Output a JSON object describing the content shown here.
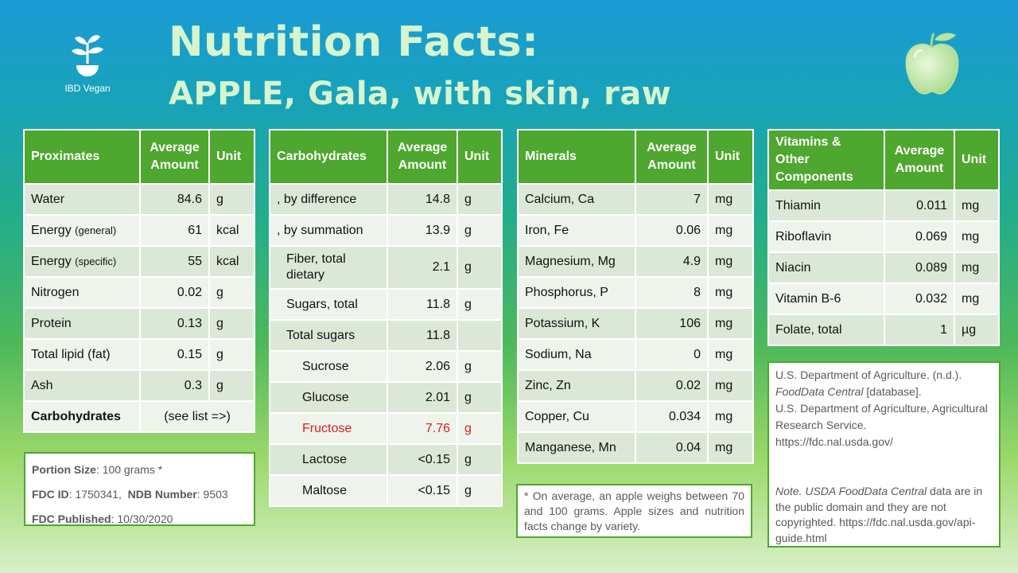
{
  "brand": {
    "name": "IBD Vegan"
  },
  "title": {
    "line1": "Nutrition Facts:",
    "line2": "APPLE, Gala, with skin, raw"
  },
  "proximates": {
    "headers": [
      "Proximates",
      "Average Amount",
      "Unit"
    ],
    "rows": [
      {
        "name": "Water",
        "value": "84.6",
        "unit": "g"
      },
      {
        "name": "Energy",
        "qualifier": "(general)",
        "value": "61",
        "unit": "kcal"
      },
      {
        "name": "Energy",
        "qualifier": "(specific)",
        "value": "55",
        "unit": "kcal"
      },
      {
        "name": "Nitrogen",
        "value": "0.02",
        "unit": "g"
      },
      {
        "name": "Protein",
        "value": "0.13",
        "unit": "g"
      },
      {
        "name": "Total lipid (fat)",
        "value": "0.15",
        "unit": "g"
      },
      {
        "name": "Ash",
        "value": "0.3",
        "unit": "g"
      },
      {
        "name": "Carbohydrates",
        "value": "(see list =>)"
      }
    ]
  },
  "carbohydrates": {
    "headers": [
      "Carbohydrates",
      "Average Amount",
      "Unit"
    ],
    "rows": [
      {
        "name": ", by difference",
        "value": "14.8",
        "unit": "g"
      },
      {
        "name": ", by summation",
        "value": "13.9",
        "unit": "g"
      },
      {
        "name": "Fiber, total dietary",
        "value": "2.1",
        "unit": "g"
      },
      {
        "name": "Sugars, total",
        "value": "11.8",
        "unit": "g"
      },
      {
        "name": "Total sugars",
        "value": "11.8",
        "unit": ""
      },
      {
        "name": "Sucrose",
        "value": "2.06",
        "unit": "g"
      },
      {
        "name": "Glucose",
        "value": "2.01",
        "unit": "g"
      },
      {
        "name": "Fructose",
        "value": "7.76",
        "unit": "g"
      },
      {
        "name": "Lactose",
        "value": "<0.15",
        "unit": "g"
      },
      {
        "name": "Maltose",
        "value": "<0.15",
        "unit": "g"
      }
    ]
  },
  "minerals": {
    "headers": [
      "Minerals",
      "Average Amount",
      "Unit"
    ],
    "rows": [
      {
        "name": "Calcium, Ca",
        "value": "7",
        "unit": "mg"
      },
      {
        "name": "Iron, Fe",
        "value": "0.06",
        "unit": "mg"
      },
      {
        "name": "Magnesium, Mg",
        "value": "4.9",
        "unit": "mg"
      },
      {
        "name": "Phosphorus, P",
        "value": "8",
        "unit": "mg"
      },
      {
        "name": "Potassium, K",
        "value": "106",
        "unit": "mg"
      },
      {
        "name": "Sodium, Na",
        "value": "0",
        "unit": "mg"
      },
      {
        "name": "Zinc, Zn",
        "value": "0.02",
        "unit": "mg"
      },
      {
        "name": "Copper, Cu",
        "value": "0.034",
        "unit": "mg"
      },
      {
        "name": "Manganese, Mn",
        "value": "0.04",
        "unit": "mg"
      }
    ]
  },
  "vitamins": {
    "headers": [
      "Vitamins & Other Components",
      "Average Amount",
      "Unit"
    ],
    "rows": [
      {
        "name": "Thiamin",
        "value": "0.011",
        "unit": "mg"
      },
      {
        "name": "Riboflavin",
        "value": "0.069",
        "unit": "mg"
      },
      {
        "name": "Niacin",
        "value": "0.089",
        "unit": "mg"
      },
      {
        "name": "Vitamin B-6",
        "value": "0.032",
        "unit": "mg"
      },
      {
        "name": "Folate, total",
        "value": "1",
        "unit": "µg"
      }
    ]
  },
  "portion": {
    "size_label": "Portion Size",
    "size_value": "100 grams *",
    "fdc_label": "FDC ID",
    "fdc_value": "1750341",
    "ndb_label": "NDB Number",
    "ndb_value": "9503",
    "published_label": "FDC Published",
    "published_value": "10/30/2020"
  },
  "footnote": "* On average, an apple weighs between 70 and 100 grams. Apple sizes and nutrition facts change by variety.",
  "references": {
    "citation_a": "U.S. Department of Agriculture. (n.d.).",
    "citation_title": "FoodData Central",
    "citation_b": "[database].",
    "citation_c": "U.S. Department of Agriculture, Agricultural Research Service.",
    "citation_url": "https://fdc.nal.usda.gov/",
    "note_label": "Note.",
    "note_title": "USDA FoodData Central",
    "note_text": "data are in the public domain and they are not copyrighted.",
    "note_url": "https://fdc.nal.usda.gov/api-guide.html"
  },
  "colors": {
    "header_green": "#4ea72e",
    "row_dark": "#dbe8d8",
    "row_light": "#eef4ec",
    "title_text": "#d6f5cf",
    "highlight_red": "#e31b1b"
  },
  "icons": [
    "sprout-icon",
    "apple-icon"
  ]
}
